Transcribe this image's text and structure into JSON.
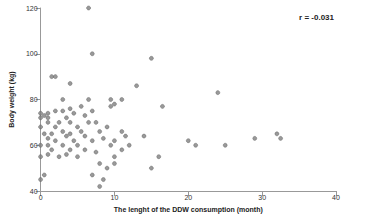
{
  "chart_data": {
    "type": "scatter",
    "x_label": "The lenght of the DDW consumption (month)",
    "y_label": "Body weight (kg)",
    "annotation": "r = -0.031",
    "color": "#808080",
    "marker": "circle",
    "grid": false,
    "xlim": [
      0,
      40
    ],
    "xticks": [
      0,
      10,
      20,
      30,
      40
    ],
    "ylim": [
      40,
      120
    ],
    "yticks": [
      40,
      60,
      80,
      100,
      120
    ],
    "x": [
      0,
      0,
      0,
      0,
      0,
      0,
      0.5,
      0.5,
      0.5,
      1,
      1,
      1,
      1,
      1,
      1,
      1.5,
      1.5,
      1.5,
      2,
      2,
      2,
      2,
      2.5,
      2.5,
      3,
      3,
      3,
      3,
      3.5,
      3.5,
      3.5,
      4,
      4,
      4,
      4,
      4,
      4.5,
      4.5,
      5,
      5,
      5,
      5.5,
      5.5,
      6,
      6,
      6,
      6.5,
      6.5,
      6.5,
      7,
      7,
      7,
      7,
      7.5,
      7.5,
      8,
      8,
      8,
      8.5,
      8.5,
      9,
      9,
      9.5,
      9.5,
      9.5,
      10,
      10,
      10,
      10,
      11,
      11,
      11,
      11.5,
      12,
      13,
      14,
      15,
      15,
      16,
      16.5,
      20,
      21,
      24,
      25,
      29,
      32,
      32.5
    ],
    "values": [
      74,
      72,
      68,
      60,
      55,
      45,
      47,
      73,
      65,
      74,
      72,
      70,
      63,
      56,
      60,
      90,
      65,
      58,
      90,
      75,
      68,
      62,
      70,
      55,
      80,
      75,
      66,
      60,
      72,
      64,
      56,
      87,
      76,
      70,
      65,
      58,
      74,
      62,
      68,
      60,
      55,
      77,
      66,
      73,
      64,
      58,
      120,
      80,
      70,
      100,
      75,
      62,
      47,
      70,
      57,
      66,
      42,
      52,
      45,
      63,
      50,
      68,
      80,
      77,
      60,
      78,
      62,
      55,
      52,
      80,
      66,
      58,
      64,
      60,
      86,
      64,
      98,
      50,
      55,
      77,
      62,
      60,
      83,
      60,
      63,
      65,
      63
    ]
  }
}
